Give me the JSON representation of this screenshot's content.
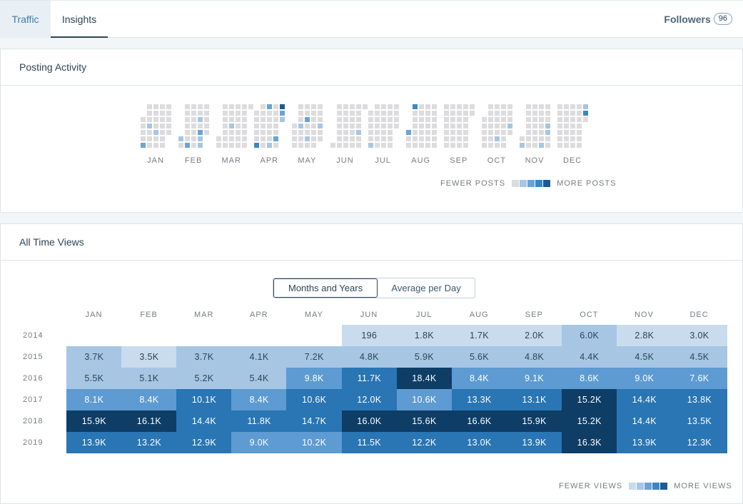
{
  "tabs": {
    "traffic": "Traffic",
    "insights": "Insights"
  },
  "followers": {
    "label": "Followers",
    "count": "96"
  },
  "posting_activity": {
    "title": "Posting Activity",
    "months": [
      "JAN",
      "FEB",
      "MAR",
      "APR",
      "MAY",
      "JUN",
      "JUL",
      "AUG",
      "SEP",
      "OCT",
      "NOV",
      "DEC"
    ],
    "legend_fewer": "FEWER POSTS",
    "legend_more": "MORE POSTS",
    "levels": [
      "#dcdcde",
      "#a6c6e4",
      "#6aa3d5",
      "#3b87c5",
      "#1c5b93"
    ],
    "start_offsets": [
      2,
      5,
      5,
      1,
      3,
      6,
      1,
      4,
      0,
      2,
      5,
      0
    ],
    "days_in_month": [
      31,
      28,
      31,
      30,
      31,
      30,
      31,
      31,
      30,
      31,
      30,
      31
    ],
    "posts": [
      {
        "m": 0,
        "d": [
          [
            5,
            2
          ],
          [
            9,
            1
          ],
          [
            17,
            1
          ]
        ]
      },
      {
        "m": 1,
        "d": [
          [
            1,
            1
          ],
          [
            9,
            2
          ],
          [
            19,
            1
          ],
          [
            21,
            2
          ],
          [
            22,
            1
          ],
          [
            23,
            1
          ]
        ]
      },
      {
        "m": 2,
        "d": [
          [
            13,
            1
          ]
        ]
      },
      {
        "m": 3,
        "d": [
          [
            6,
            3
          ],
          [
            14,
            2
          ],
          [
            20,
            1
          ],
          [
            26,
            2
          ],
          [
            28,
            4
          ],
          [
            29,
            2
          ],
          [
            30,
            1
          ]
        ]
      },
      {
        "m": 4,
        "d": [
          [
            8,
            1
          ],
          [
            14,
            2
          ],
          [
            17,
            1
          ],
          [
            29,
            1
          ]
        ]
      },
      {
        "m": 5,
        "d": [
          [
            27,
            1
          ]
        ]
      },
      {
        "m": 6,
        "d": [
          [
            6,
            1
          ]
        ]
      },
      {
        "m": 7,
        "d": [
          [
            1,
            2
          ],
          [
            4,
            3
          ]
        ]
      },
      {
        "m": 8,
        "d": []
      },
      {
        "m": 9,
        "d": [
          [
            18,
            1
          ],
          [
            30,
            1
          ]
        ]
      },
      {
        "m": 10,
        "d": [
          [
            2,
            1
          ],
          [
            23,
            1
          ],
          [
            27,
            1
          ],
          [
            28,
            1
          ]
        ]
      },
      {
        "m": 11,
        "d": [
          [
            29,
            1
          ],
          [
            30,
            3
          ]
        ]
      }
    ]
  },
  "all_time_views": {
    "title": "All Time Views",
    "toggle": {
      "months_years": "Months and Years",
      "avg_per_day": "Average per Day",
      "selected": "Months and Years"
    },
    "legend_fewer": "FEWER VIEWS",
    "legend_more": "MORE VIEWS",
    "legend_colors": [
      "#c8dcee",
      "#a6c6e4",
      "#6aa3d5",
      "#3b87c5",
      "#1c5b93"
    ]
  },
  "chart_data": {
    "type": "heatmap",
    "columns": [
      "JAN",
      "FEB",
      "MAR",
      "APR",
      "MAY",
      "JUN",
      "JUL",
      "AUG",
      "SEP",
      "OCT",
      "NOV",
      "DEC"
    ],
    "rows": [
      {
        "year": "2014",
        "values": [
          "",
          "",
          "",
          "",
          "",
          "196",
          "1.8K",
          "1.7K",
          "2.0K",
          "6.0K",
          "2.8K",
          "3.0K"
        ],
        "levels": [
          0,
          0,
          0,
          0,
          0,
          1,
          1,
          1,
          1,
          2,
          1,
          1
        ]
      },
      {
        "year": "2015",
        "values": [
          "3.7K",
          "3.5K",
          "3.7K",
          "4.1K",
          "7.2K",
          "4.8K",
          "5.9K",
          "5.6K",
          "4.8K",
          "4.4K",
          "4.5K",
          "4.5K"
        ],
        "levels": [
          2,
          1,
          2,
          2,
          2,
          2,
          2,
          2,
          2,
          2,
          2,
          2
        ]
      },
      {
        "year": "2016",
        "values": [
          "5.5K",
          "5.1K",
          "5.2K",
          "5.4K",
          "9.8K",
          "11.7K",
          "18.4K",
          "8.4K",
          "9.1K",
          "8.6K",
          "9.0K",
          "7.6K"
        ],
        "levels": [
          2,
          2,
          2,
          2,
          3,
          4,
          5,
          3,
          3,
          3,
          3,
          3
        ]
      },
      {
        "year": "2017",
        "values": [
          "8.1K",
          "8.4K",
          "10.1K",
          "8.4K",
          "10.6K",
          "12.0K",
          "10.6K",
          "13.3K",
          "13.1K",
          "15.2K",
          "14.4K",
          "13.8K"
        ],
        "levels": [
          3,
          3,
          4,
          3,
          4,
          4,
          3,
          4,
          4,
          5,
          4,
          4
        ]
      },
      {
        "year": "2018",
        "values": [
          "15.9K",
          "16.1K",
          "14.4K",
          "11.8K",
          "14.7K",
          "16.0K",
          "15.6K",
          "16.6K",
          "15.9K",
          "15.2K",
          "14.4K",
          "13.5K"
        ],
        "levels": [
          5,
          5,
          4,
          4,
          4,
          5,
          5,
          5,
          5,
          5,
          4,
          4
        ]
      },
      {
        "year": "2019",
        "values": [
          "13.9K",
          "13.2K",
          "12.9K",
          "9.0K",
          "10.2K",
          "11.5K",
          "12.2K",
          "13.0K",
          "13.9K",
          "16.3K",
          "13.9K",
          "12.3K"
        ],
        "levels": [
          4,
          4,
          4,
          3,
          3,
          4,
          4,
          4,
          4,
          5,
          4,
          4
        ]
      }
    ],
    "level_colors": [
      "#ffffff",
      "#c8dcee",
      "#a6c6e4",
      "#5d9bd2",
      "#2a75b4",
      "#0e3d66"
    ],
    "level_text": [
      "#2e4453",
      "#2e4453",
      "#2e4453",
      "#ffffff",
      "#ffffff",
      "#ffffff"
    ]
  }
}
